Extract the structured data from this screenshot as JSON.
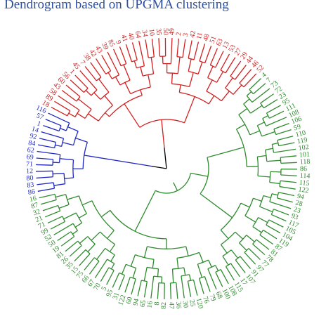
{
  "title": "Dendrogram based on UPGMA clustering",
  "colors": {
    "cluster_blue": "#1f27c2",
    "cluster_red": "#d21f1f",
    "cluster_green": "#2e8b2e",
    "root": "#000000",
    "title": "#2d4f9e"
  },
  "clusters": {
    "blue": [
      "86",
      "83",
      "80",
      "12",
      "71",
      "69",
      "62",
      "84",
      "92",
      "14",
      "1",
      "57",
      "116"
    ],
    "red": [
      "18",
      "89",
      "58",
      "43",
      "60",
      "56",
      "1",
      "45",
      "7",
      "38",
      "42",
      "43",
      "39",
      "85",
      "9",
      "41",
      "40",
      "64",
      "34",
      "10",
      "35",
      "50",
      "49",
      "2",
      "3",
      "42",
      "11",
      "48",
      "51",
      "63",
      "13",
      "53",
      "27",
      "29",
      "44",
      "46",
      "52"
    ],
    "green_right": [
      "4",
      "7",
      "73",
      "72",
      "23",
      "95",
      "111",
      "108",
      "106",
      "59",
      "110",
      "119",
      "102",
      "101",
      "118",
      "86",
      "114",
      "115",
      "122"
    ],
    "green_bottom": [
      "94",
      "28",
      "23",
      "93",
      "117",
      "105",
      "104",
      "119",
      "87",
      "81",
      "78",
      "77",
      "97",
      "91",
      "107",
      "17",
      "115"
    ],
    "green_left": [
      "108",
      "100",
      "68",
      "79",
      "76",
      "120",
      "25",
      "30",
      "36",
      "47",
      "82",
      "8",
      "16",
      "65",
      "94",
      "60",
      "122",
      "31",
      "95",
      "5",
      "70",
      "67",
      "66",
      "75",
      "15",
      "35",
      "26",
      "81",
      "19",
      "50",
      "52",
      "99",
      "71",
      "21",
      "32",
      "87",
      "16"
    ]
  }
}
